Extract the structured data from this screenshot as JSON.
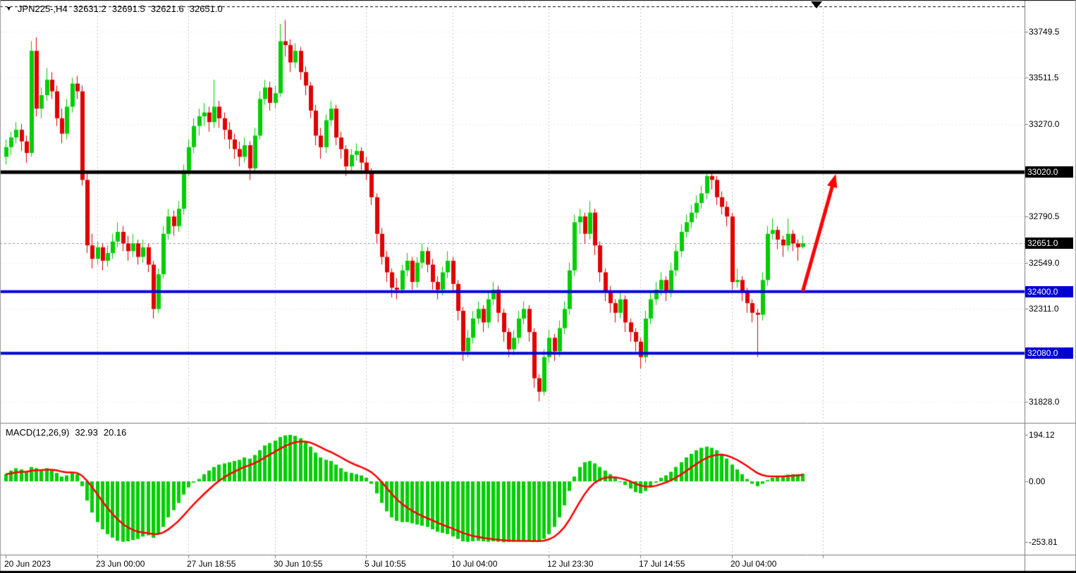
{
  "symbol_info": {
    "dropdown_icon": "▼",
    "title": "JPN225-,H4",
    "open": "32631.2",
    "high": "32691.5",
    "low": "32621.6",
    "close": "32651.0"
  },
  "macd_info": {
    "label": "MACD(12,26,9)",
    "macd_value": "32.93",
    "signal_value": "20.16"
  },
  "colors": {
    "background": "#ffffff",
    "bull": "#00ce00",
    "bear": "#e00000",
    "macd_histogram": "#00ce00",
    "macd_signal": "#ff0000",
    "arrow": "#ff0000",
    "resistance_black": "#000000",
    "support_blue": "#0000d8",
    "grid": "#c9c9c9"
  },
  "chart_data": [
    {
      "type": "candlestick",
      "symbol": "JPN225-",
      "timeframe": "H4",
      "current_price": 32651.0,
      "ylim": [
        31700,
        33930
      ],
      "y_ticks": [
        {
          "label": "33749.5",
          "value": 33749.5
        },
        {
          "label": "33511.5",
          "value": 33511.5
        },
        {
          "label": "33270.0",
          "value": 33270.0
        },
        {
          "label": "33020.0",
          "value": 33020.0,
          "badge": "black"
        },
        {
          "label": "32790.5",
          "value": 32790.5
        },
        {
          "label": "32651.0",
          "value": 32651.0,
          "badge": "black"
        },
        {
          "label": "32549.0",
          "value": 32549.0
        },
        {
          "label": "32400.0",
          "value": 32400.0,
          "badge": "blue"
        },
        {
          "label": "32311.0",
          "value": 32311.0
        },
        {
          "label": "32080.0",
          "value": 32080.0,
          "badge": "blue"
        },
        {
          "label": "31828.0",
          "value": 31828.0
        }
      ],
      "x_ticks": [
        {
          "label": "20 Jun 2023",
          "index": 0
        },
        {
          "label": "23 Jun 00:00",
          "index": 18
        },
        {
          "label": "27 Jun 18:55",
          "index": 36
        },
        {
          "label": "30 Jun 10:55",
          "index": 53
        },
        {
          "label": "5 Jul 10:55",
          "index": 71
        },
        {
          "label": "10 Jul 04:00",
          "index": 88
        },
        {
          "label": "12 Jul 23:30",
          "index": 107
        },
        {
          "label": "17 Jul 14:55",
          "index": 125
        },
        {
          "label": "20 Jul 04:00",
          "index": 143
        },
        {
          "label": "",
          "index": 161
        }
      ],
      "horizontal_lines": [
        {
          "price": 33020.0,
          "color": "#000000",
          "width": 5,
          "label": "33020.0"
        },
        {
          "price": 32400.0,
          "color": "#0000d8",
          "width": 4,
          "label": "32400.0"
        },
        {
          "price": 32080.0,
          "color": "#0000d8",
          "width": 4,
          "label": "32080.0"
        }
      ],
      "arrow_annotation": {
        "color": "#ff0000",
        "from": {
          "index": 157,
          "price": 32400
        },
        "to": {
          "index": 163.5,
          "price": 33010
        }
      },
      "candles": [
        [
          33100,
          33190,
          33060,
          33150
        ],
        [
          33150,
          33230,
          33110,
          33200
        ],
        [
          33200,
          33280,
          33170,
          33240
        ],
        [
          33240,
          33270,
          33130,
          33180
        ],
        [
          33180,
          33210,
          33070,
          33120
        ],
        [
          33120,
          33700,
          33100,
          33650
        ],
        [
          33650,
          33720,
          33310,
          33350
        ],
        [
          33350,
          33460,
          33300,
          33420
        ],
        [
          33420,
          33560,
          33390,
          33500
        ],
        [
          33500,
          33540,
          33400,
          33440
        ],
        [
          33440,
          33470,
          33260,
          33300
        ],
        [
          33300,
          33350,
          33170,
          33220
        ],
        [
          33220,
          33400,
          33190,
          33360
        ],
        [
          33360,
          33510,
          33330,
          33480
        ],
        [
          33480,
          33520,
          33400,
          33440
        ],
        [
          33440,
          33470,
          32950,
          32980
        ],
        [
          32980,
          33010,
          32600,
          32640
        ],
        [
          32640,
          32700,
          32520,
          32570
        ],
        [
          32570,
          32660,
          32540,
          32630
        ],
        [
          32630,
          32650,
          32510,
          32560
        ],
        [
          32560,
          32640,
          32530,
          32600
        ],
        [
          32600,
          32700,
          32570,
          32660
        ],
        [
          32660,
          32760,
          32630,
          32710
        ],
        [
          32710,
          32740,
          32610,
          32650
        ],
        [
          32650,
          32690,
          32560,
          32610
        ],
        [
          32610,
          32700,
          32580,
          32650
        ],
        [
          32650,
          32670,
          32540,
          32580
        ],
        [
          32580,
          32670,
          32550,
          32630
        ],
        [
          32630,
          32650,
          32500,
          32540
        ],
        [
          32540,
          32560,
          32260,
          32310
        ],
        [
          32310,
          32520,
          32290,
          32490
        ],
        [
          32490,
          32740,
          32470,
          32700
        ],
        [
          32700,
          32830,
          32670,
          32790
        ],
        [
          32790,
          32820,
          32690,
          32740
        ],
        [
          32740,
          32870,
          32710,
          32830
        ],
        [
          32830,
          33060,
          32800,
          33030
        ],
        [
          33030,
          33190,
          33000,
          33150
        ],
        [
          33150,
          33300,
          33120,
          33260
        ],
        [
          33260,
          33350,
          33210,
          33310
        ],
        [
          33310,
          33380,
          33260,
          33330
        ],
        [
          33330,
          33360,
          33230,
          33280
        ],
        [
          33280,
          33500,
          33250,
          33360
        ],
        [
          33360,
          33390,
          33250,
          33300
        ],
        [
          33300,
          33330,
          33190,
          33240
        ],
        [
          33240,
          33280,
          33140,
          33190
        ],
        [
          33190,
          33220,
          33090,
          33140
        ],
        [
          33140,
          33180,
          33050,
          33100
        ],
        [
          33100,
          33200,
          33070,
          33160
        ],
        [
          33160,
          33180,
          32980,
          33040
        ],
        [
          33040,
          33250,
          33020,
          33210
        ],
        [
          33210,
          33440,
          33190,
          33400
        ],
        [
          33400,
          33500,
          33370,
          33460
        ],
        [
          33460,
          33490,
          33340,
          33380
        ],
        [
          33380,
          33470,
          33350,
          33430
        ],
        [
          33430,
          33790,
          33410,
          33700
        ],
        [
          33700,
          33810,
          33620,
          33680
        ],
        [
          33680,
          33710,
          33540,
          33590
        ],
        [
          33590,
          33690,
          33560,
          33650
        ],
        [
          33650,
          33670,
          33500,
          33540
        ],
        [
          33540,
          33570,
          33420,
          33470
        ],
        [
          33470,
          33490,
          33300,
          33340
        ],
        [
          33340,
          33370,
          33160,
          33210
        ],
        [
          33210,
          33250,
          33090,
          33150
        ],
        [
          33150,
          33320,
          33120,
          33290
        ],
        [
          33290,
          33390,
          33260,
          33350
        ],
        [
          33350,
          33370,
          33160,
          33200
        ],
        [
          33200,
          33230,
          33090,
          33140
        ],
        [
          33140,
          33160,
          33000,
          33050
        ],
        [
          33050,
          33140,
          33020,
          33110
        ],
        [
          33110,
          33170,
          33080,
          33130
        ],
        [
          33130,
          33150,
          33030,
          33070
        ],
        [
          33070,
          33100,
          32980,
          33020
        ],
        [
          33020,
          33040,
          32850,
          32890
        ],
        [
          32890,
          32910,
          32650,
          32700
        ],
        [
          32700,
          32730,
          32540,
          32580
        ],
        [
          32580,
          32610,
          32450,
          32500
        ],
        [
          32500,
          32520,
          32370,
          32420
        ],
        [
          32420,
          32470,
          32360,
          32410
        ],
        [
          32410,
          32540,
          32390,
          32510
        ],
        [
          32510,
          32600,
          32480,
          32560
        ],
        [
          32560,
          32580,
          32410,
          32450
        ],
        [
          32450,
          32580,
          32420,
          32550
        ],
        [
          32550,
          32650,
          32520,
          32610
        ],
        [
          32610,
          32630,
          32500,
          32540
        ],
        [
          32540,
          32570,
          32410,
          32450
        ],
        [
          32450,
          32480,
          32360,
          32410
        ],
        [
          32410,
          32530,
          32380,
          32500
        ],
        [
          32500,
          32610,
          32470,
          32560
        ],
        [
          32560,
          32580,
          32400,
          32440
        ],
        [
          32440,
          32460,
          32250,
          32300
        ],
        [
          32300,
          32320,
          32040,
          32090
        ],
        [
          32090,
          32200,
          32060,
          32160
        ],
        [
          32160,
          32300,
          32130,
          32260
        ],
        [
          32260,
          32350,
          32230,
          32310
        ],
        [
          32310,
          32330,
          32190,
          32240
        ],
        [
          32240,
          32400,
          32210,
          32360
        ],
        [
          32360,
          32450,
          32330,
          32410
        ],
        [
          32410,
          32430,
          32240,
          32290
        ],
        [
          32290,
          32310,
          32140,
          32190
        ],
        [
          32190,
          32210,
          32060,
          32100
        ],
        [
          32100,
          32200,
          32070,
          32160
        ],
        [
          32160,
          32300,
          32130,
          32260
        ],
        [
          32260,
          32350,
          32230,
          32310
        ],
        [
          32310,
          32330,
          32140,
          32190
        ],
        [
          32190,
          32210,
          31900,
          31950
        ],
        [
          31950,
          31970,
          31830,
          31880
        ],
        [
          31880,
          32100,
          31860,
          32060
        ],
        [
          32060,
          32200,
          32030,
          32160
        ],
        [
          32160,
          32180,
          32040,
          32090
        ],
        [
          32090,
          32250,
          32060,
          32210
        ],
        [
          32210,
          32350,
          32180,
          32310
        ],
        [
          32310,
          32550,
          32280,
          32510
        ],
        [
          32510,
          32800,
          32480,
          32760
        ],
        [
          32760,
          32830,
          32700,
          32790
        ],
        [
          32790,
          32810,
          32650,
          32700
        ],
        [
          32700,
          32870,
          32670,
          32810
        ],
        [
          32810,
          32830,
          32590,
          32640
        ],
        [
          32640,
          32660,
          32450,
          32500
        ],
        [
          32500,
          32520,
          32350,
          32400
        ],
        [
          32400,
          32430,
          32290,
          32340
        ],
        [
          32340,
          32360,
          32240,
          32290
        ],
        [
          32290,
          32400,
          32260,
          32360
        ],
        [
          32360,
          32380,
          32190,
          32240
        ],
        [
          32240,
          32260,
          32140,
          32190
        ],
        [
          32190,
          32210,
          32090,
          32140
        ],
        [
          32140,
          32160,
          32000,
          32060
        ],
        [
          32060,
          32300,
          32030,
          32260
        ],
        [
          32260,
          32400,
          32230,
          32360
        ],
        [
          32360,
          32450,
          32330,
          32410
        ],
        [
          32410,
          32500,
          32380,
          32460
        ],
        [
          32460,
          32480,
          32350,
          32400
        ],
        [
          32400,
          32550,
          32370,
          32510
        ],
        [
          32510,
          32650,
          32480,
          32610
        ],
        [
          32610,
          32750,
          32580,
          32710
        ],
        [
          32710,
          32800,
          32680,
          32760
        ],
        [
          32760,
          32850,
          32730,
          32810
        ],
        [
          32810,
          32900,
          32780,
          32860
        ],
        [
          32860,
          32950,
          32830,
          32910
        ],
        [
          32910,
          33010,
          32880,
          33000
        ],
        [
          33000,
          33015,
          32930,
          32980
        ],
        [
          32980,
          33000,
          32850,
          32890
        ],
        [
          32890,
          32920,
          32800,
          32840
        ],
        [
          32840,
          32870,
          32740,
          32790
        ],
        [
          32790,
          32810,
          32410,
          32450
        ],
        [
          32450,
          32520,
          32420,
          32460
        ],
        [
          32460,
          32480,
          32350,
          32400
        ],
        [
          32400,
          32420,
          32290,
          32340
        ],
        [
          32340,
          32360,
          32240,
          32290
        ],
        [
          32290,
          32310,
          32060,
          32280
        ],
        [
          32280,
          32500,
          32250,
          32460
        ],
        [
          32460,
          32740,
          32430,
          32700
        ],
        [
          32700,
          32780,
          32670,
          32720
        ],
        [
          32720,
          32740,
          32620,
          32670
        ],
        [
          32670,
          32690,
          32580,
          32640
        ],
        [
          32640,
          32780,
          32610,
          32700
        ],
        [
          32700,
          32720,
          32610,
          32650
        ],
        [
          32650,
          32670,
          32560,
          32630
        ],
        [
          32631.2,
          32691.5,
          32621.6,
          32651.0
        ]
      ]
    },
    {
      "type": "bar",
      "name": "MACD(12,26,9)",
      "current_macd": 32.93,
      "current_signal": 20.16,
      "signal_period": 9,
      "signal": "red line = EMA(signal_period) of values",
      "y_ticks": [
        {
          "label": "194.12",
          "value": 194.12
        },
        {
          "label": "0.00",
          "value": 0
        },
        {
          "label": "-253.81",
          "value": -253.81
        }
      ],
      "values": [
        30,
        45,
        55,
        50,
        40,
        60,
        55,
        50,
        55,
        50,
        35,
        20,
        25,
        35,
        30,
        -20,
        -80,
        -130,
        -170,
        -200,
        -220,
        -235,
        -248,
        -252,
        -250,
        -245,
        -240,
        -230,
        -225,
        -235,
        -220,
        -190,
        -150,
        -120,
        -90,
        -55,
        -25,
        -5,
        10,
        30,
        45,
        60,
        70,
        75,
        80,
        85,
        90,
        100,
        95,
        110,
        130,
        150,
        160,
        170,
        185,
        192,
        194.12,
        190,
        180,
        165,
        145,
        120,
        100,
        90,
        85,
        70,
        55,
        40,
        35,
        30,
        25,
        15,
        -10,
        -50,
        -90,
        -125,
        -150,
        -165,
        -170,
        -170,
        -175,
        -180,
        -185,
        -190,
        -200,
        -210,
        -215,
        -220,
        -230,
        -240,
        -250,
        -252,
        -250,
        -248,
        -250,
        -252,
        -250,
        -252,
        -253.81,
        -253,
        -252,
        -250,
        -248,
        -250,
        -252,
        -250,
        -240,
        -220,
        -190,
        -150,
        -100,
        -40,
        20,
        60,
        80,
        85,
        75,
        60,
        45,
        30,
        15,
        0,
        -15,
        -30,
        -45,
        -50,
        -40,
        -25,
        -5,
        15,
        25,
        40,
        60,
        80,
        100,
        115,
        130,
        140,
        145,
        140,
        130,
        115,
        95,
        70,
        50,
        30,
        10,
        -10,
        -20,
        -10,
        5,
        15,
        20,
        22,
        28,
        30,
        30,
        32.93
      ]
    }
  ]
}
